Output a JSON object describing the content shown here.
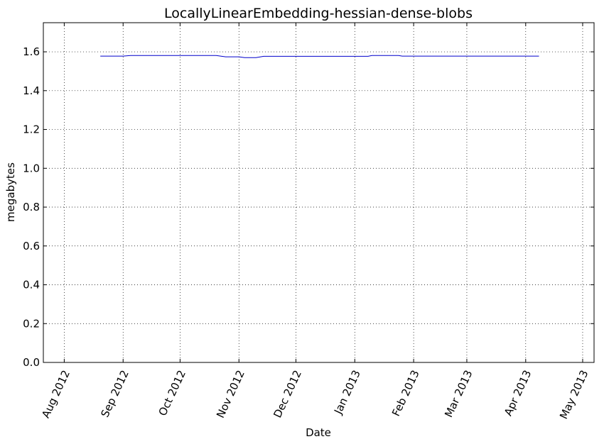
{
  "chart_data": {
    "type": "line",
    "title": "LocallyLinearEmbedding-hessian-dense-blobs",
    "xlabel": "Date",
    "ylabel": "megabytes",
    "x_axis_type": "date",
    "xlim": [
      "2012-07-21",
      "2013-05-07"
    ],
    "ylim": [
      0,
      1.75
    ],
    "grid": true,
    "line_color": "#0000cc",
    "x_ticks": [
      {
        "date": "2012-08-01",
        "label": "Aug 2012"
      },
      {
        "date": "2012-09-01",
        "label": "Sep 2012"
      },
      {
        "date": "2012-10-01",
        "label": "Oct 2012"
      },
      {
        "date": "2012-11-01",
        "label": "Nov 2012"
      },
      {
        "date": "2012-12-01",
        "label": "Dec 2012"
      },
      {
        "date": "2013-01-01",
        "label": "Jan 2013"
      },
      {
        "date": "2013-02-01",
        "label": "Feb 2013"
      },
      {
        "date": "2013-03-01",
        "label": "Mar 2013"
      },
      {
        "date": "2013-04-01",
        "label": "Apr 2013"
      },
      {
        "date": "2013-05-01",
        "label": "May 2013"
      }
    ],
    "y_ticks": [
      {
        "value": 0.0,
        "label": "0.0"
      },
      {
        "value": 0.2,
        "label": "0.2"
      },
      {
        "value": 0.4,
        "label": "0.4"
      },
      {
        "value": 0.6,
        "label": "0.6"
      },
      {
        "value": 0.8,
        "label": "0.8"
      },
      {
        "value": 1.0,
        "label": "1.0"
      },
      {
        "value": 1.2,
        "label": "1.2"
      },
      {
        "value": 1.4,
        "label": "1.4"
      },
      {
        "value": 1.6,
        "label": "1.6"
      }
    ],
    "series": [
      {
        "points": [
          {
            "x": "2012-08-20",
            "y": 1.578
          },
          {
            "x": "2012-09-01",
            "y": 1.578
          },
          {
            "x": "2012-09-05",
            "y": 1.581
          },
          {
            "x": "2012-10-15",
            "y": 1.581
          },
          {
            "x": "2012-10-20",
            "y": 1.581
          },
          {
            "x": "2012-10-25",
            "y": 1.574
          },
          {
            "x": "2012-11-01",
            "y": 1.574
          },
          {
            "x": "2012-11-04",
            "y": 1.57
          },
          {
            "x": "2012-11-10",
            "y": 1.57
          },
          {
            "x": "2012-11-14",
            "y": 1.577
          },
          {
            "x": "2012-12-01",
            "y": 1.577
          },
          {
            "x": "2013-01-08",
            "y": 1.577
          },
          {
            "x": "2013-01-10",
            "y": 1.581
          },
          {
            "x": "2013-01-24",
            "y": 1.581
          },
          {
            "x": "2013-01-26",
            "y": 1.578
          },
          {
            "x": "2013-03-01",
            "y": 1.578
          },
          {
            "x": "2013-04-08",
            "y": 1.578
          }
        ]
      }
    ]
  }
}
